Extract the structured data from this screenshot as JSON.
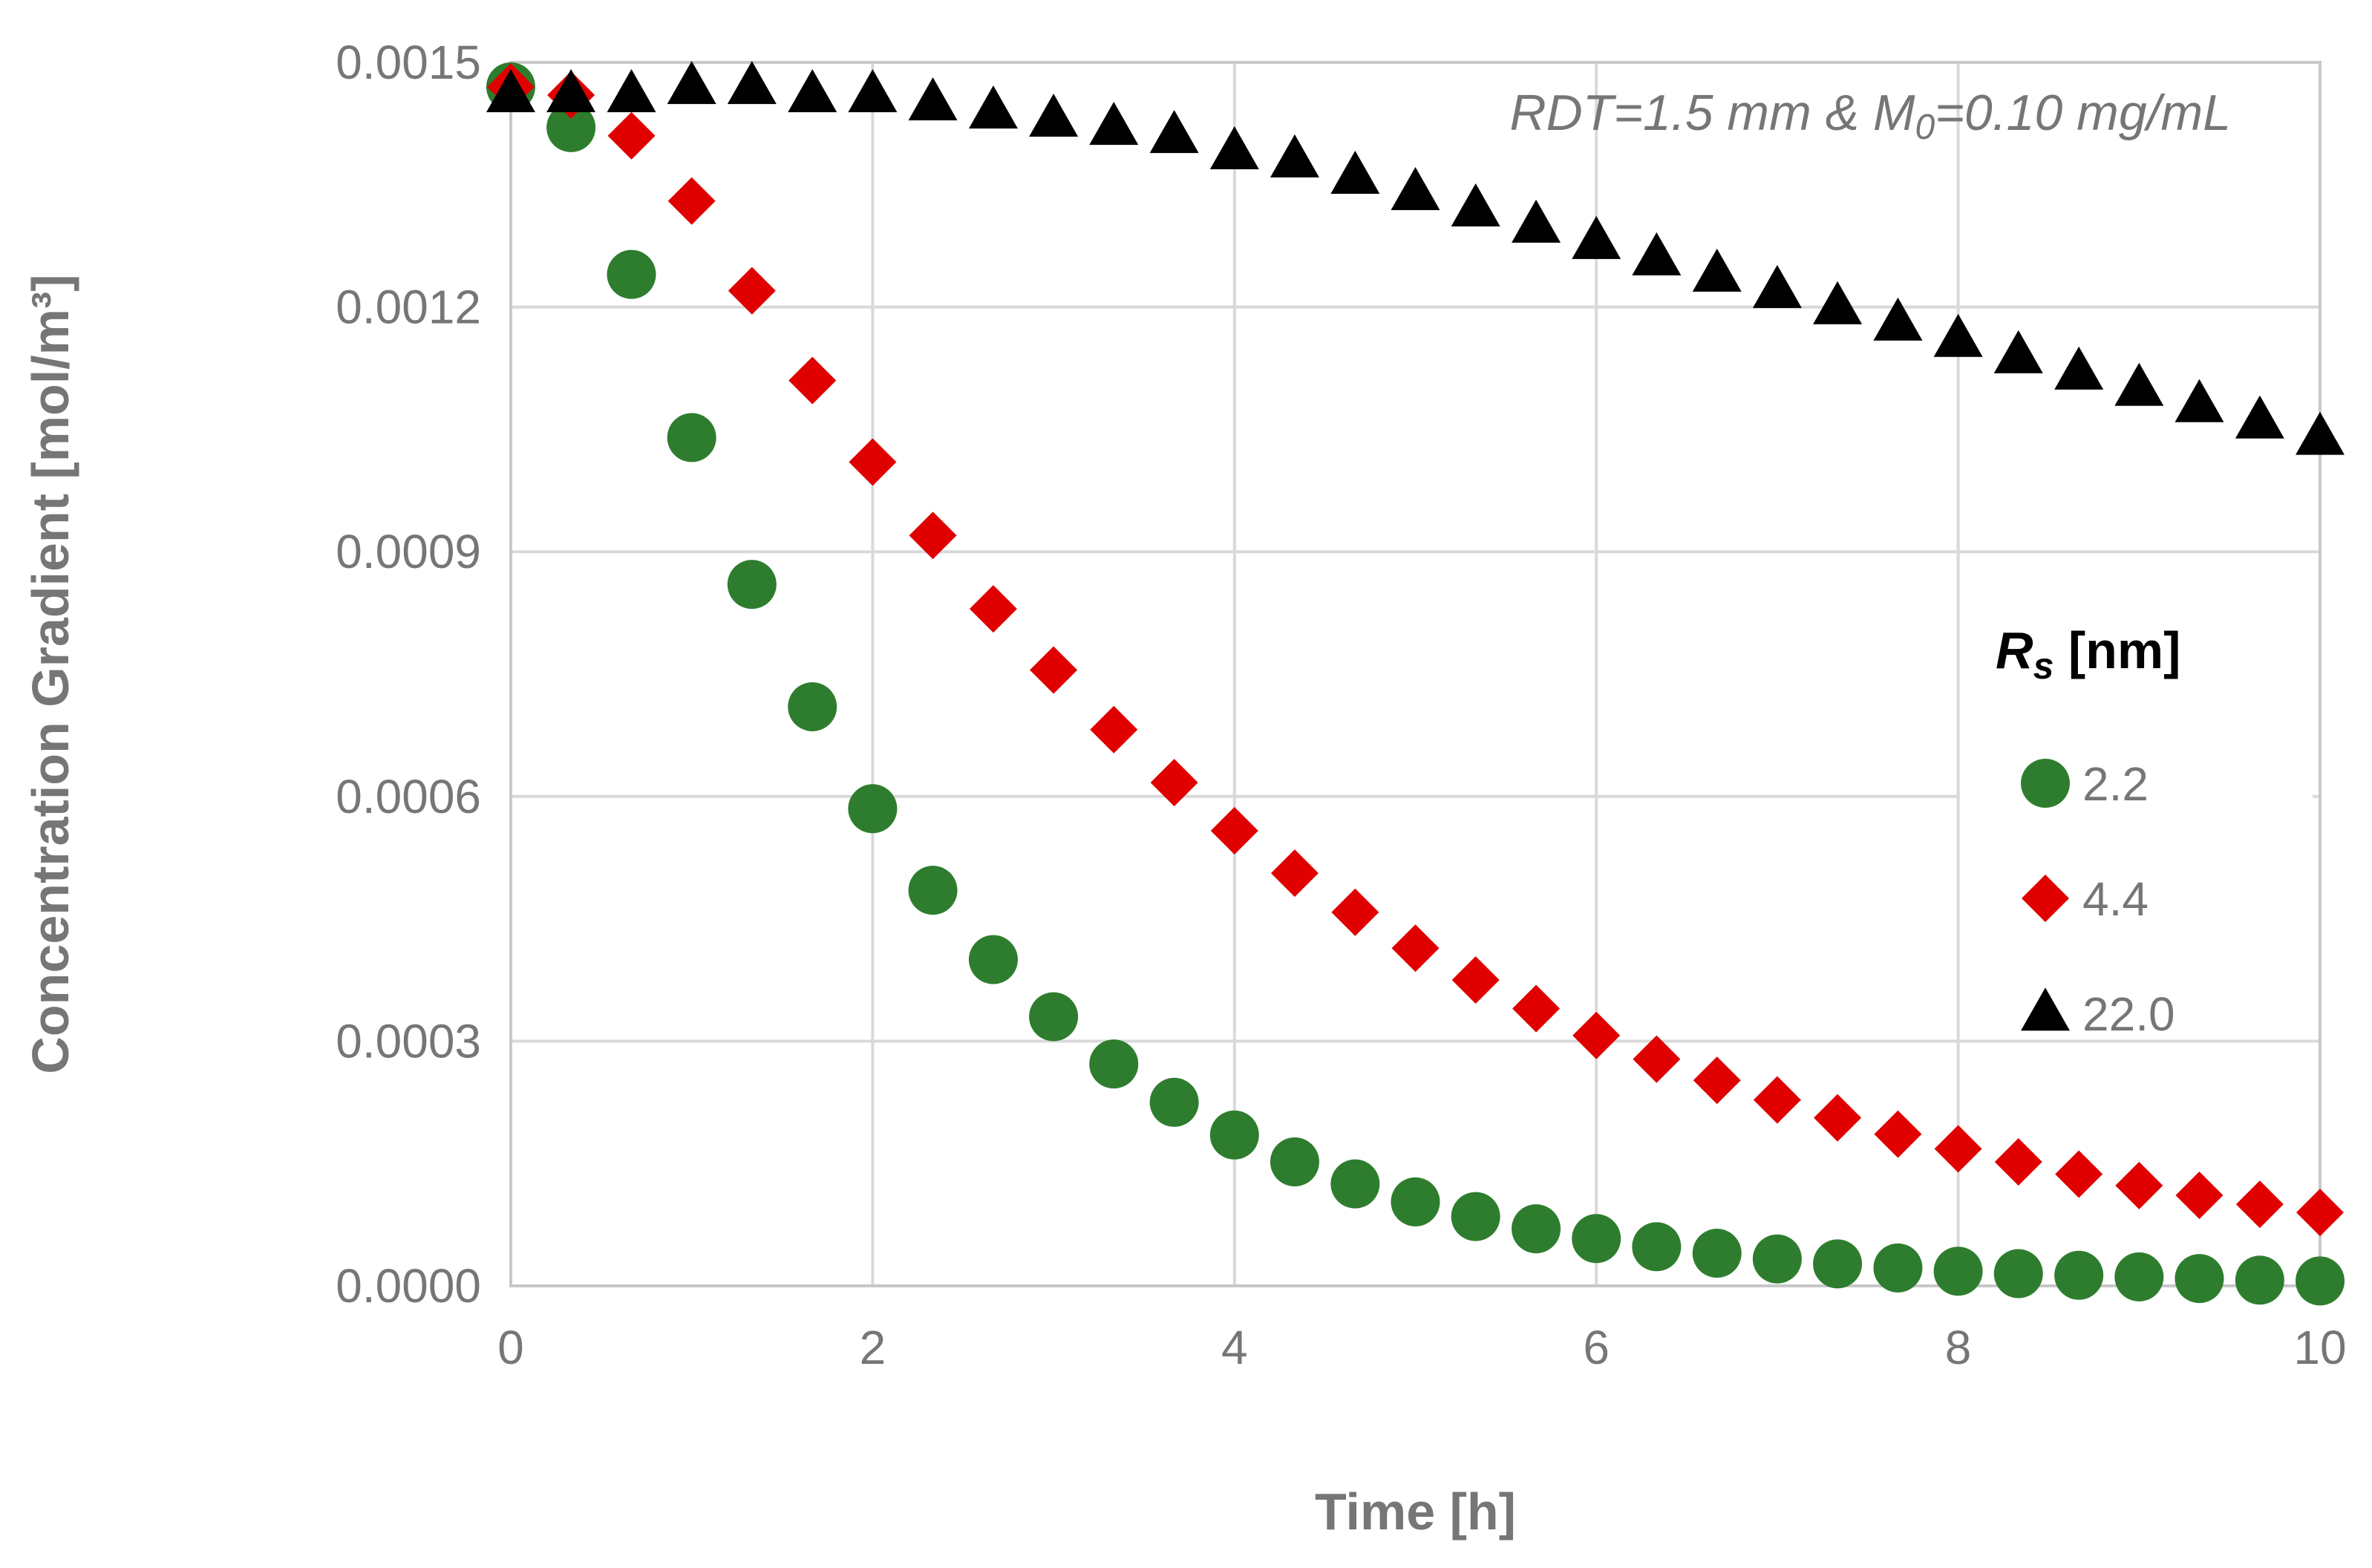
{
  "chart_data": {
    "type": "scatter",
    "title": "",
    "annotation": {
      "prefix": "RDT=1.5 mm & M",
      "subscript": "0",
      "suffix": "=0.10 mg/mL"
    },
    "xlabel": "Time [h]",
    "ylabel": "Concentration Gradient [mol/m³]",
    "xlim": [
      0,
      10
    ],
    "ylim": [
      0,
      0.0015
    ],
    "x_ticks": [
      0,
      2,
      4,
      6,
      8,
      10
    ],
    "x_tick_labels": [
      "0",
      "2",
      "4",
      "6",
      "8",
      "10"
    ],
    "y_ticks": [
      0,
      0.0003,
      0.0006,
      0.0009,
      0.0012,
      0.0015
    ],
    "y_tick_labels": [
      "0.0000",
      "0.0003",
      "0.0006",
      "0.0009",
      "0.0012",
      "0.0015"
    ],
    "grid": true,
    "legend": {
      "title_main": "R",
      "title_sub": "s",
      "title_rest": " [nm]",
      "placement": "right"
    },
    "x": [
      0,
      0.333,
      0.667,
      1,
      1.333,
      1.667,
      2,
      2.333,
      2.667,
      3,
      3.333,
      3.667,
      4,
      4.333,
      4.667,
      5,
      5.333,
      5.667,
      6,
      6.333,
      6.667,
      7,
      7.333,
      7.667,
      8,
      8.333,
      8.667,
      9,
      9.333,
      9.667,
      10
    ],
    "series": [
      {
        "name": "2.2",
        "marker": "circle",
        "color": "#2e7d2e",
        "values": [
          0.00147,
          0.00142,
          0.00124,
          0.00104,
          0.00086,
          0.00071,
          0.000585,
          0.000485,
          0.0004,
          0.00033,
          0.000272,
          0.000225,
          0.000185,
          0.000152,
          0.000125,
          0.000103,
          8.5e-05,
          7e-05,
          5.8e-05,
          4.8e-05,
          4e-05,
          3.3e-05,
          2.7e-05,
          2.2e-05,
          1.8e-05,
          1.5e-05,
          1.3e-05,
          1.1e-05,
          9e-06,
          7e-06,
          6e-06
        ]
      },
      {
        "name": "4.4",
        "marker": "diamond",
        "color": "#e00000",
        "values": [
          0.00147,
          0.00146,
          0.00141,
          0.00133,
          0.00122,
          0.00111,
          0.00101,
          0.00092,
          0.00083,
          0.000755,
          0.000682,
          0.000617,
          0.000558,
          0.000506,
          0.000458,
          0.000414,
          0.000375,
          0.00034,
          0.000307,
          0.000278,
          0.000252,
          0.000228,
          0.000206,
          0.000186,
          0.000168,
          0.000152,
          0.000137,
          0.000123,
          0.000111,
          0.0001,
          9e-05
        ]
      },
      {
        "name": "22.0",
        "marker": "triangle",
        "color": "#000000",
        "values": [
          0.00146,
          0.00146,
          0.00146,
          0.00147,
          0.00147,
          0.00146,
          0.00146,
          0.00145,
          0.00144,
          0.00143,
          0.00142,
          0.00141,
          0.00139,
          0.00138,
          0.00136,
          0.00134,
          0.00132,
          0.0013,
          0.00128,
          0.00126,
          0.00124,
          0.00122,
          0.0012,
          0.00118,
          0.00116,
          0.00114,
          0.00112,
          0.0011,
          0.00108,
          0.00106,
          0.00104
        ]
      }
    ]
  }
}
